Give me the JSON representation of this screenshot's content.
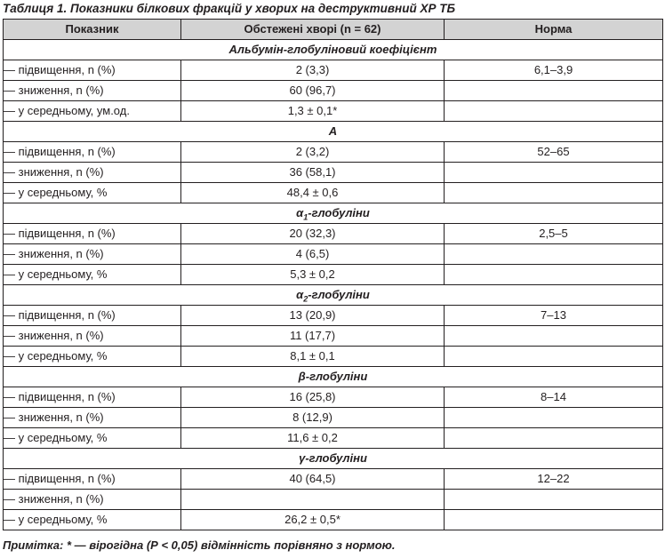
{
  "caption": "Таблиця 1. Показники білкових фракцій у хворих на деструктивний ХР ТБ",
  "headers": [
    "Показник",
    "Обстежені хворі (n = 62)",
    "Норма"
  ],
  "groups": [
    {
      "title": "Альбумін-глобуліновий коефіцієнт",
      "rows": [
        {
          "label": "— підвищення, n (%)",
          "value": "2 (3,3)",
          "norm": "6,1–3,9"
        },
        {
          "label": "— зниження, n (%)",
          "value": "60 (96,7)",
          "norm": ""
        },
        {
          "label": "— у середньому, ум.од.",
          "value": "1,3 ± 0,1*",
          "norm": ""
        }
      ]
    },
    {
      "title": "А",
      "rows": [
        {
          "label": "— підвищення, n (%)",
          "value": "2 (3,2)",
          "norm": "52–65"
        },
        {
          "label": "— зниження, n (%)",
          "value": "36 (58,1)",
          "norm": ""
        },
        {
          "label": "— у середньому, %",
          "value": "48,4 ± 0,6",
          "norm": ""
        }
      ]
    },
    {
      "title": "α",
      "title_sub": "1",
      "title_rest": "-глобуліни",
      "rows": [
        {
          "label": "— підвищення, n (%)",
          "value": "20 (32,3)",
          "norm": "2,5–5"
        },
        {
          "label": "— зниження, n (%)",
          "value": "4 (6,5)",
          "norm": ""
        },
        {
          "label": "— у середньому, %",
          "value": "5,3 ± 0,2",
          "norm": ""
        }
      ]
    },
    {
      "title": "α",
      "title_sub": "2",
      "title_rest": "-глобуліни",
      "rows": [
        {
          "label": "— підвищення, n (%)",
          "value": "13 (20,9)",
          "norm": "7–13"
        },
        {
          "label": "— зниження, n (%)",
          "value": "11 (17,7)",
          "norm": ""
        },
        {
          "label": "— у середньому, %",
          "value": "8,1 ± 0,1",
          "norm": ""
        }
      ]
    },
    {
      "title": "β-глобуліни",
      "rows": [
        {
          "label": "— підвищення, n (%)",
          "value": "16 (25,8)",
          "norm": "8–14"
        },
        {
          "label": "— зниження, n (%)",
          "value": "8 (12,9)",
          "norm": ""
        },
        {
          "label": "— у середньому, %",
          "value": "11,6 ± 0,2",
          "norm": ""
        }
      ]
    },
    {
      "title": "γ-глобуліни",
      "rows": [
        {
          "label": "— підвищення, n (%)",
          "value": "40 (64,5)",
          "norm": "12–22"
        },
        {
          "label": "— зниження, n (%)",
          "value": "",
          "norm": ""
        },
        {
          "label": "— у середньому, %",
          "value": "26,2 ± 0,5*",
          "norm": ""
        }
      ]
    }
  ],
  "note": "Примітка: * — вірогідна (Р < 0,05) відмінність порівняно з нормою."
}
